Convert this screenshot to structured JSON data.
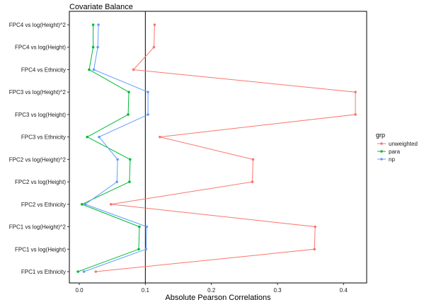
{
  "chart_data": {
    "type": "line",
    "title": "Covariate Balance",
    "xlabel": "Absolute Pearson Correlations",
    "ylabel": "",
    "xlim": [
      -0.015,
      0.435
    ],
    "x_ticks": [
      0.0,
      0.1,
      0.2,
      0.3,
      0.4
    ],
    "x_tick_labels": [
      "0.0",
      "0.1",
      "0.2",
      "0.3",
      "0.4"
    ],
    "threshold_line": 0.1,
    "grid": false,
    "legend_title": "grp",
    "legend_position": "right",
    "categories": [
      "FPC1 vs Ethnicity",
      "FPC1 vs log(Height)",
      "FPC1 vs log(Height)^2",
      "FPC2 vs Ethnicity",
      "FPC2 vs log(Height)",
      "FPC2 vs log(Height)^2",
      "FPC3 vs Ethnicity",
      "FPC3 vs log(Height)",
      "FPC3 vs log(Height)^2",
      "FPC4 vs Ethnicity",
      "FPC4 vs log(Height)",
      "FPC4 vs log(Height)^2"
    ],
    "series": [
      {
        "name": "unweighted",
        "color": "#F8766D",
        "values": [
          0.025,
          0.356,
          0.357,
          0.048,
          0.262,
          0.263,
          0.122,
          0.418,
          0.418,
          0.082,
          0.113,
          0.114
        ]
      },
      {
        "name": "para",
        "color": "#00BA38",
        "values": [
          -0.002,
          0.09,
          0.091,
          0.004,
          0.076,
          0.077,
          0.012,
          0.074,
          0.075,
          0.015,
          0.021,
          0.021
        ]
      },
      {
        "name": "np",
        "color": "#619CFF",
        "values": [
          0.007,
          0.101,
          0.102,
          0.009,
          0.057,
          0.058,
          0.03,
          0.104,
          0.104,
          0.022,
          0.028,
          0.029
        ]
      }
    ]
  }
}
